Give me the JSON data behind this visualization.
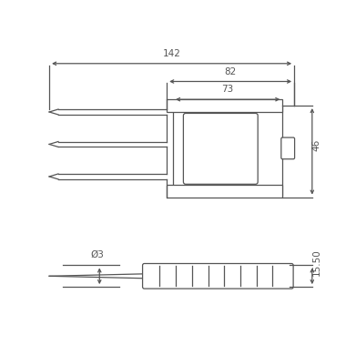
{
  "bg_color": "#ffffff",
  "line_color": "#555555",
  "text_color": "#555555",
  "fig_width": 3.91,
  "fig_height": 3.79,
  "dpi": 100
}
